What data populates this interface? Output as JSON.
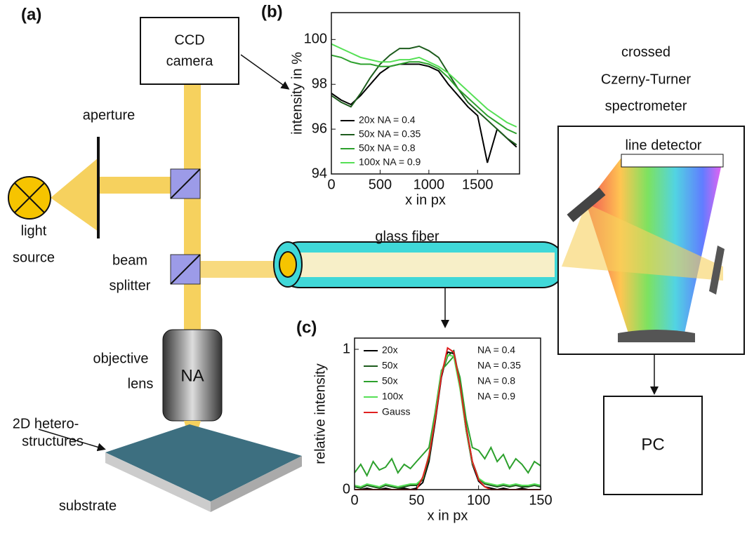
{
  "figure": {
    "panels": [
      "(a)",
      "(b)",
      "(c)"
    ],
    "ccd": [
      "CCD",
      "camera"
    ],
    "aperture": "aperture",
    "light_source": [
      "light",
      "source"
    ],
    "beam_splitter": [
      "beam",
      "splitter"
    ],
    "objective": [
      "objective",
      "lens"
    ],
    "na": "NA",
    "hetero": [
      "2D hetero-",
      "structures"
    ],
    "substrate": "substrate",
    "fiber": "glass fiber",
    "spectrometer": [
      "crossed",
      "Czerny-Turner",
      "spectrometer"
    ],
    "line_detector": "line detector",
    "pc": "PC"
  },
  "chart_data": [
    {
      "type": "line",
      "y_label": "intensity in %",
      "x_label": "x in px",
      "x": [
        0,
        100,
        200,
        300,
        400,
        500,
        600,
        700,
        800,
        900,
        1000,
        1100,
        1200,
        1300,
        1400,
        1500,
        1600,
        1700,
        1800,
        1900
      ],
      "xlim": [
        0,
        1930
      ],
      "ylim": [
        94,
        101.2
      ],
      "xticks": [
        0,
        500,
        1000,
        1500
      ],
      "yticks": [
        94,
        96,
        98,
        100
      ],
      "series": [
        {
          "name": "20x NA = 0.4",
          "color": "#000000",
          "values": [
            97.6,
            97.3,
            97.1,
            97.5,
            98.0,
            98.5,
            98.8,
            98.9,
            98.9,
            98.9,
            98.8,
            98.6,
            98.0,
            97.5,
            97.0,
            96.6,
            94.5,
            96.0,
            95.6,
            95.2
          ]
        },
        {
          "name": "50x NA = 0.35",
          "color": "#1d5c1d",
          "values": [
            97.5,
            97.2,
            97.0,
            97.6,
            98.3,
            98.9,
            99.3,
            99.6,
            99.6,
            99.7,
            99.5,
            99.2,
            98.5,
            97.8,
            97.2,
            96.8,
            96.4,
            96.0,
            95.6,
            95.3
          ]
        },
        {
          "name": "50x NA = 0.8",
          "color": "#2ca02c",
          "values": [
            99.3,
            99.2,
            99.0,
            98.9,
            98.9,
            98.8,
            98.8,
            98.9,
            99.0,
            99.0,
            98.9,
            98.7,
            98.3,
            97.8,
            97.4,
            97.0,
            96.6,
            96.3,
            96.0,
            95.8
          ]
        },
        {
          "name": "100x NA = 0.9",
          "color": "#55e055",
          "values": [
            99.8,
            99.6,
            99.4,
            99.2,
            99.1,
            99.0,
            99.0,
            99.1,
            99.1,
            99.2,
            99.0,
            98.8,
            98.5,
            98.1,
            97.7,
            97.3,
            96.9,
            96.6,
            96.3,
            96.1
          ]
        }
      ]
    },
    {
      "type": "line",
      "y_label": "relative intensity",
      "x_label": "x in px",
      "x": [
        0,
        5,
        10,
        15,
        20,
        25,
        30,
        35,
        40,
        45,
        50,
        55,
        60,
        65,
        70,
        75,
        80,
        85,
        90,
        95,
        100,
        105,
        110,
        115,
        120,
        125,
        130,
        135,
        140,
        145,
        150
      ],
      "xlim": [
        0,
        150
      ],
      "ylim": [
        0,
        1.08
      ],
      "xticks": [
        0,
        50,
        100,
        150
      ],
      "yticks": [
        0,
        1
      ],
      "series": [
        {
          "name": "20x",
          "na": "NA = 0.4",
          "color": "#000000",
          "values": [
            0,
            0,
            0.01,
            0,
            0,
            0.01,
            0,
            0,
            0.01,
            0,
            0.01,
            0.05,
            0.2,
            0.48,
            0.8,
            0.98,
            0.97,
            0.74,
            0.42,
            0.18,
            0.06,
            0.02,
            0.01,
            0,
            0.01,
            0,
            0,
            0.01,
            0,
            0,
            0
          ]
        },
        {
          "name": "50x",
          "na": "NA = 0.35",
          "color": "#1d5c1d",
          "values": [
            0.02,
            0.01,
            0.03,
            0.02,
            0.01,
            0.03,
            0.02,
            0.01,
            0.02,
            0.03,
            0.03,
            0.07,
            0.22,
            0.5,
            0.82,
            0.95,
            0.99,
            0.76,
            0.45,
            0.2,
            0.08,
            0.04,
            0.03,
            0.02,
            0.03,
            0.02,
            0.03,
            0.02,
            0.02,
            0.03,
            0.02
          ]
        },
        {
          "name": "50x",
          "na": "NA = 0.8",
          "color": "#2ca02c",
          "values": [
            0.12,
            0.18,
            0.1,
            0.2,
            0.14,
            0.16,
            0.22,
            0.12,
            0.18,
            0.15,
            0.2,
            0.25,
            0.3,
            0.55,
            0.85,
            0.9,
            0.95,
            0.8,
            0.5,
            0.3,
            0.28,
            0.22,
            0.3,
            0.2,
            0.25,
            0.15,
            0.22,
            0.18,
            0.12,
            0.2,
            0.17
          ]
        },
        {
          "name": "100x",
          "na": "NA = 0.9",
          "color": "#55e055",
          "values": [
            0.03,
            0.02,
            0.04,
            0.03,
            0.02,
            0.04,
            0.03,
            0.02,
            0.03,
            0.04,
            0.04,
            0.08,
            0.25,
            0.52,
            0.84,
            0.96,
            0.95,
            0.72,
            0.42,
            0.19,
            0.08,
            0.05,
            0.04,
            0.03,
            0.04,
            0.03,
            0.04,
            0.03,
            0.03,
            0.04,
            0.03
          ]
        },
        {
          "name": "Gauss",
          "color": "#e02020",
          "values": [
            0,
            0,
            0,
            0,
            0,
            0,
            0,
            0,
            0,
            0,
            0,
            0.09,
            0.24,
            0.5,
            0.81,
            1.01,
            0.98,
            0.75,
            0.44,
            0.2,
            0.07,
            0.02,
            0,
            0,
            0,
            0,
            0,
            0,
            0,
            0,
            0
          ]
        }
      ]
    }
  ]
}
